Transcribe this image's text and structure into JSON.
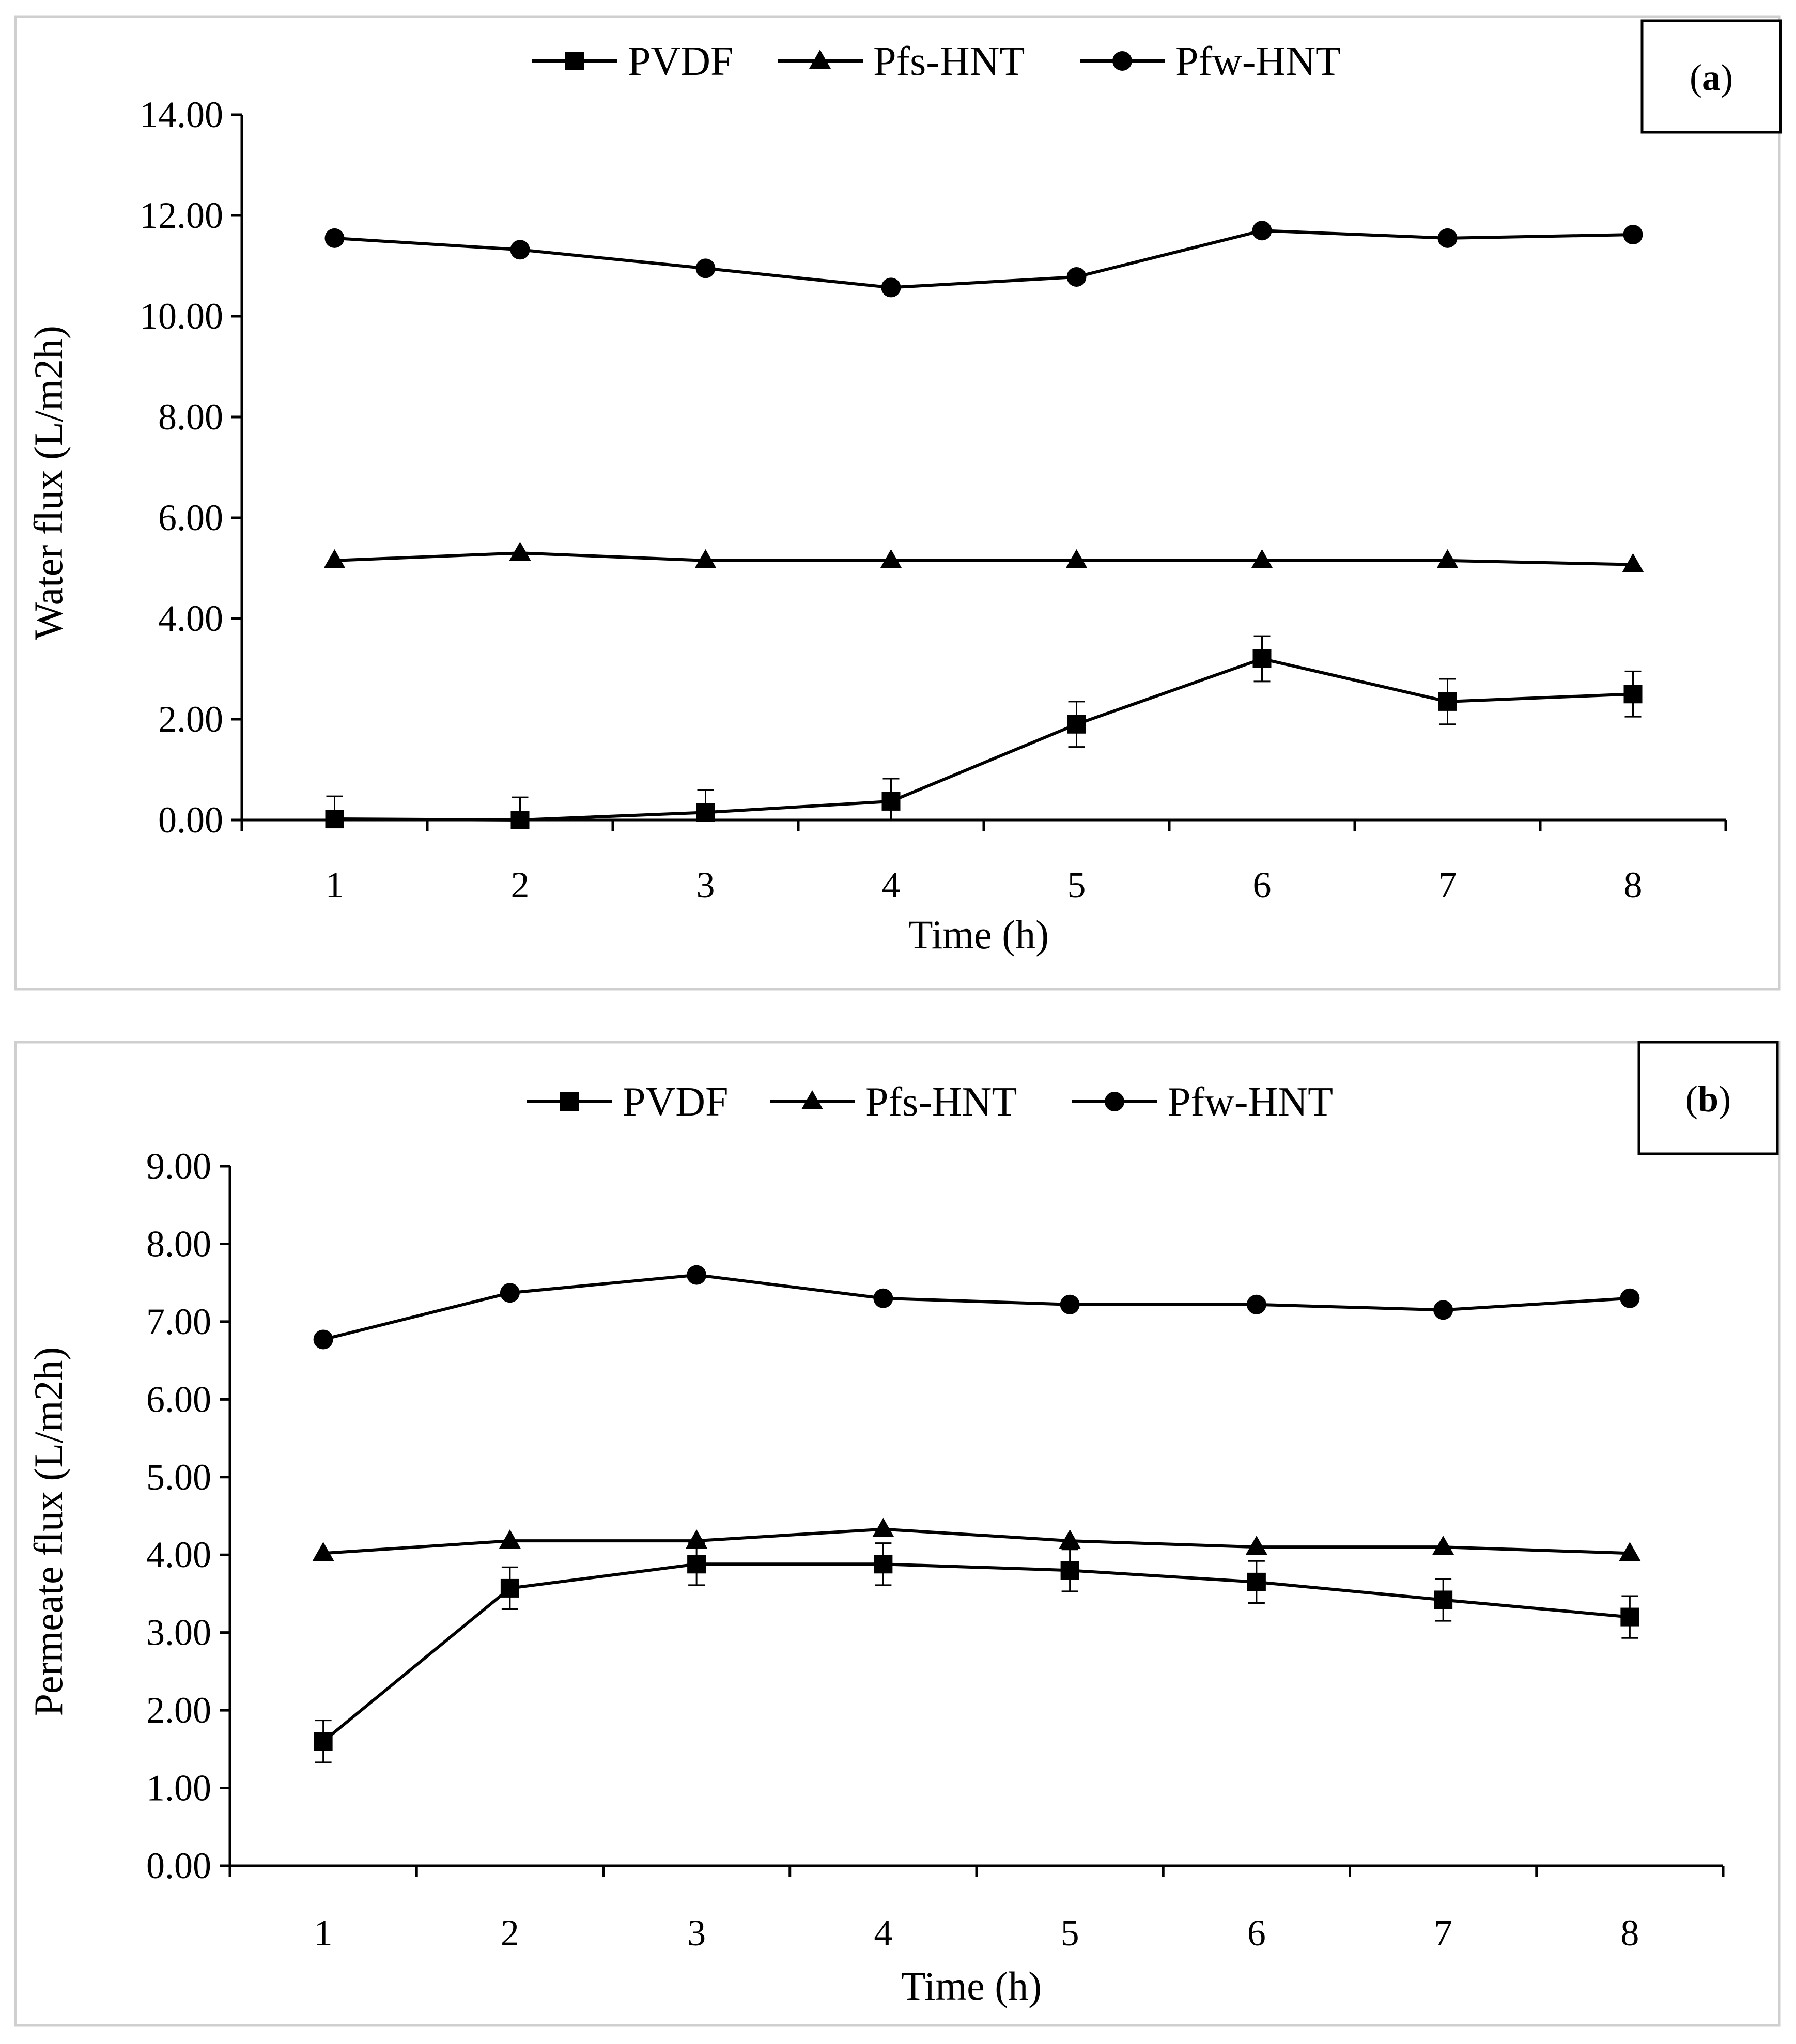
{
  "chart_data": [
    {
      "type": "line",
      "panel_label": "a",
      "xlabel": "Time (h)",
      "ylabel": "Water flux (L/m2h)",
      "ylim": [
        0,
        14
      ],
      "ytick_step": 2,
      "ytick_labels": [
        "0.00",
        "2.00",
        "4.00",
        "6.00",
        "8.00",
        "10.00",
        "12.00",
        "14.00"
      ],
      "x": [
        1,
        2,
        3,
        4,
        5,
        6,
        7,
        8
      ],
      "legend_position": "top-center",
      "series": [
        {
          "name": "PVDF",
          "marker": "square",
          "values": [
            0.02,
            0.0,
            0.15,
            0.37,
            1.9,
            3.2,
            2.35,
            2.5
          ],
          "error": [
            0.45,
            0.45,
            0.45,
            0.45,
            0.45,
            0.45,
            0.45,
            0.45
          ]
        },
        {
          "name": "Pfs-HNT",
          "marker": "triangle",
          "values": [
            5.15,
            5.3,
            5.15,
            5.15,
            5.15,
            5.15,
            5.15,
            5.07
          ],
          "error": null
        },
        {
          "name": "Pfw-HNT",
          "marker": "circle",
          "values": [
            11.55,
            11.32,
            10.95,
            10.57,
            10.78,
            11.7,
            11.55,
            11.62
          ],
          "error": null
        }
      ]
    },
    {
      "type": "line",
      "panel_label": "b",
      "xlabel": "Time (h)",
      "ylabel": "Permeate flux (L/m2h)",
      "ylim": [
        0,
        9
      ],
      "ytick_step": 1,
      "ytick_labels": [
        "0.00",
        "1.00",
        "2.00",
        "3.00",
        "4.00",
        "5.00",
        "6.00",
        "7.00",
        "8.00",
        "9.00"
      ],
      "x": [
        1,
        2,
        3,
        4,
        5,
        6,
        7,
        8
      ],
      "legend_position": "top-center",
      "series": [
        {
          "name": "PVDF",
          "marker": "square",
          "values": [
            1.6,
            3.57,
            3.88,
            3.88,
            3.8,
            3.65,
            3.42,
            3.2
          ],
          "error": [
            0.27,
            0.27,
            0.27,
            0.27,
            0.27,
            0.27,
            0.27,
            0.27
          ]
        },
        {
          "name": "Pfs-HNT",
          "marker": "triangle",
          "values": [
            4.02,
            4.18,
            4.18,
            4.33,
            4.18,
            4.1,
            4.1,
            4.02
          ],
          "error": null
        },
        {
          "name": "Pfw-HNT",
          "marker": "circle",
          "values": [
            6.77,
            7.37,
            7.6,
            7.3,
            7.22,
            7.22,
            7.15,
            7.3
          ],
          "error": null
        }
      ]
    }
  ]
}
